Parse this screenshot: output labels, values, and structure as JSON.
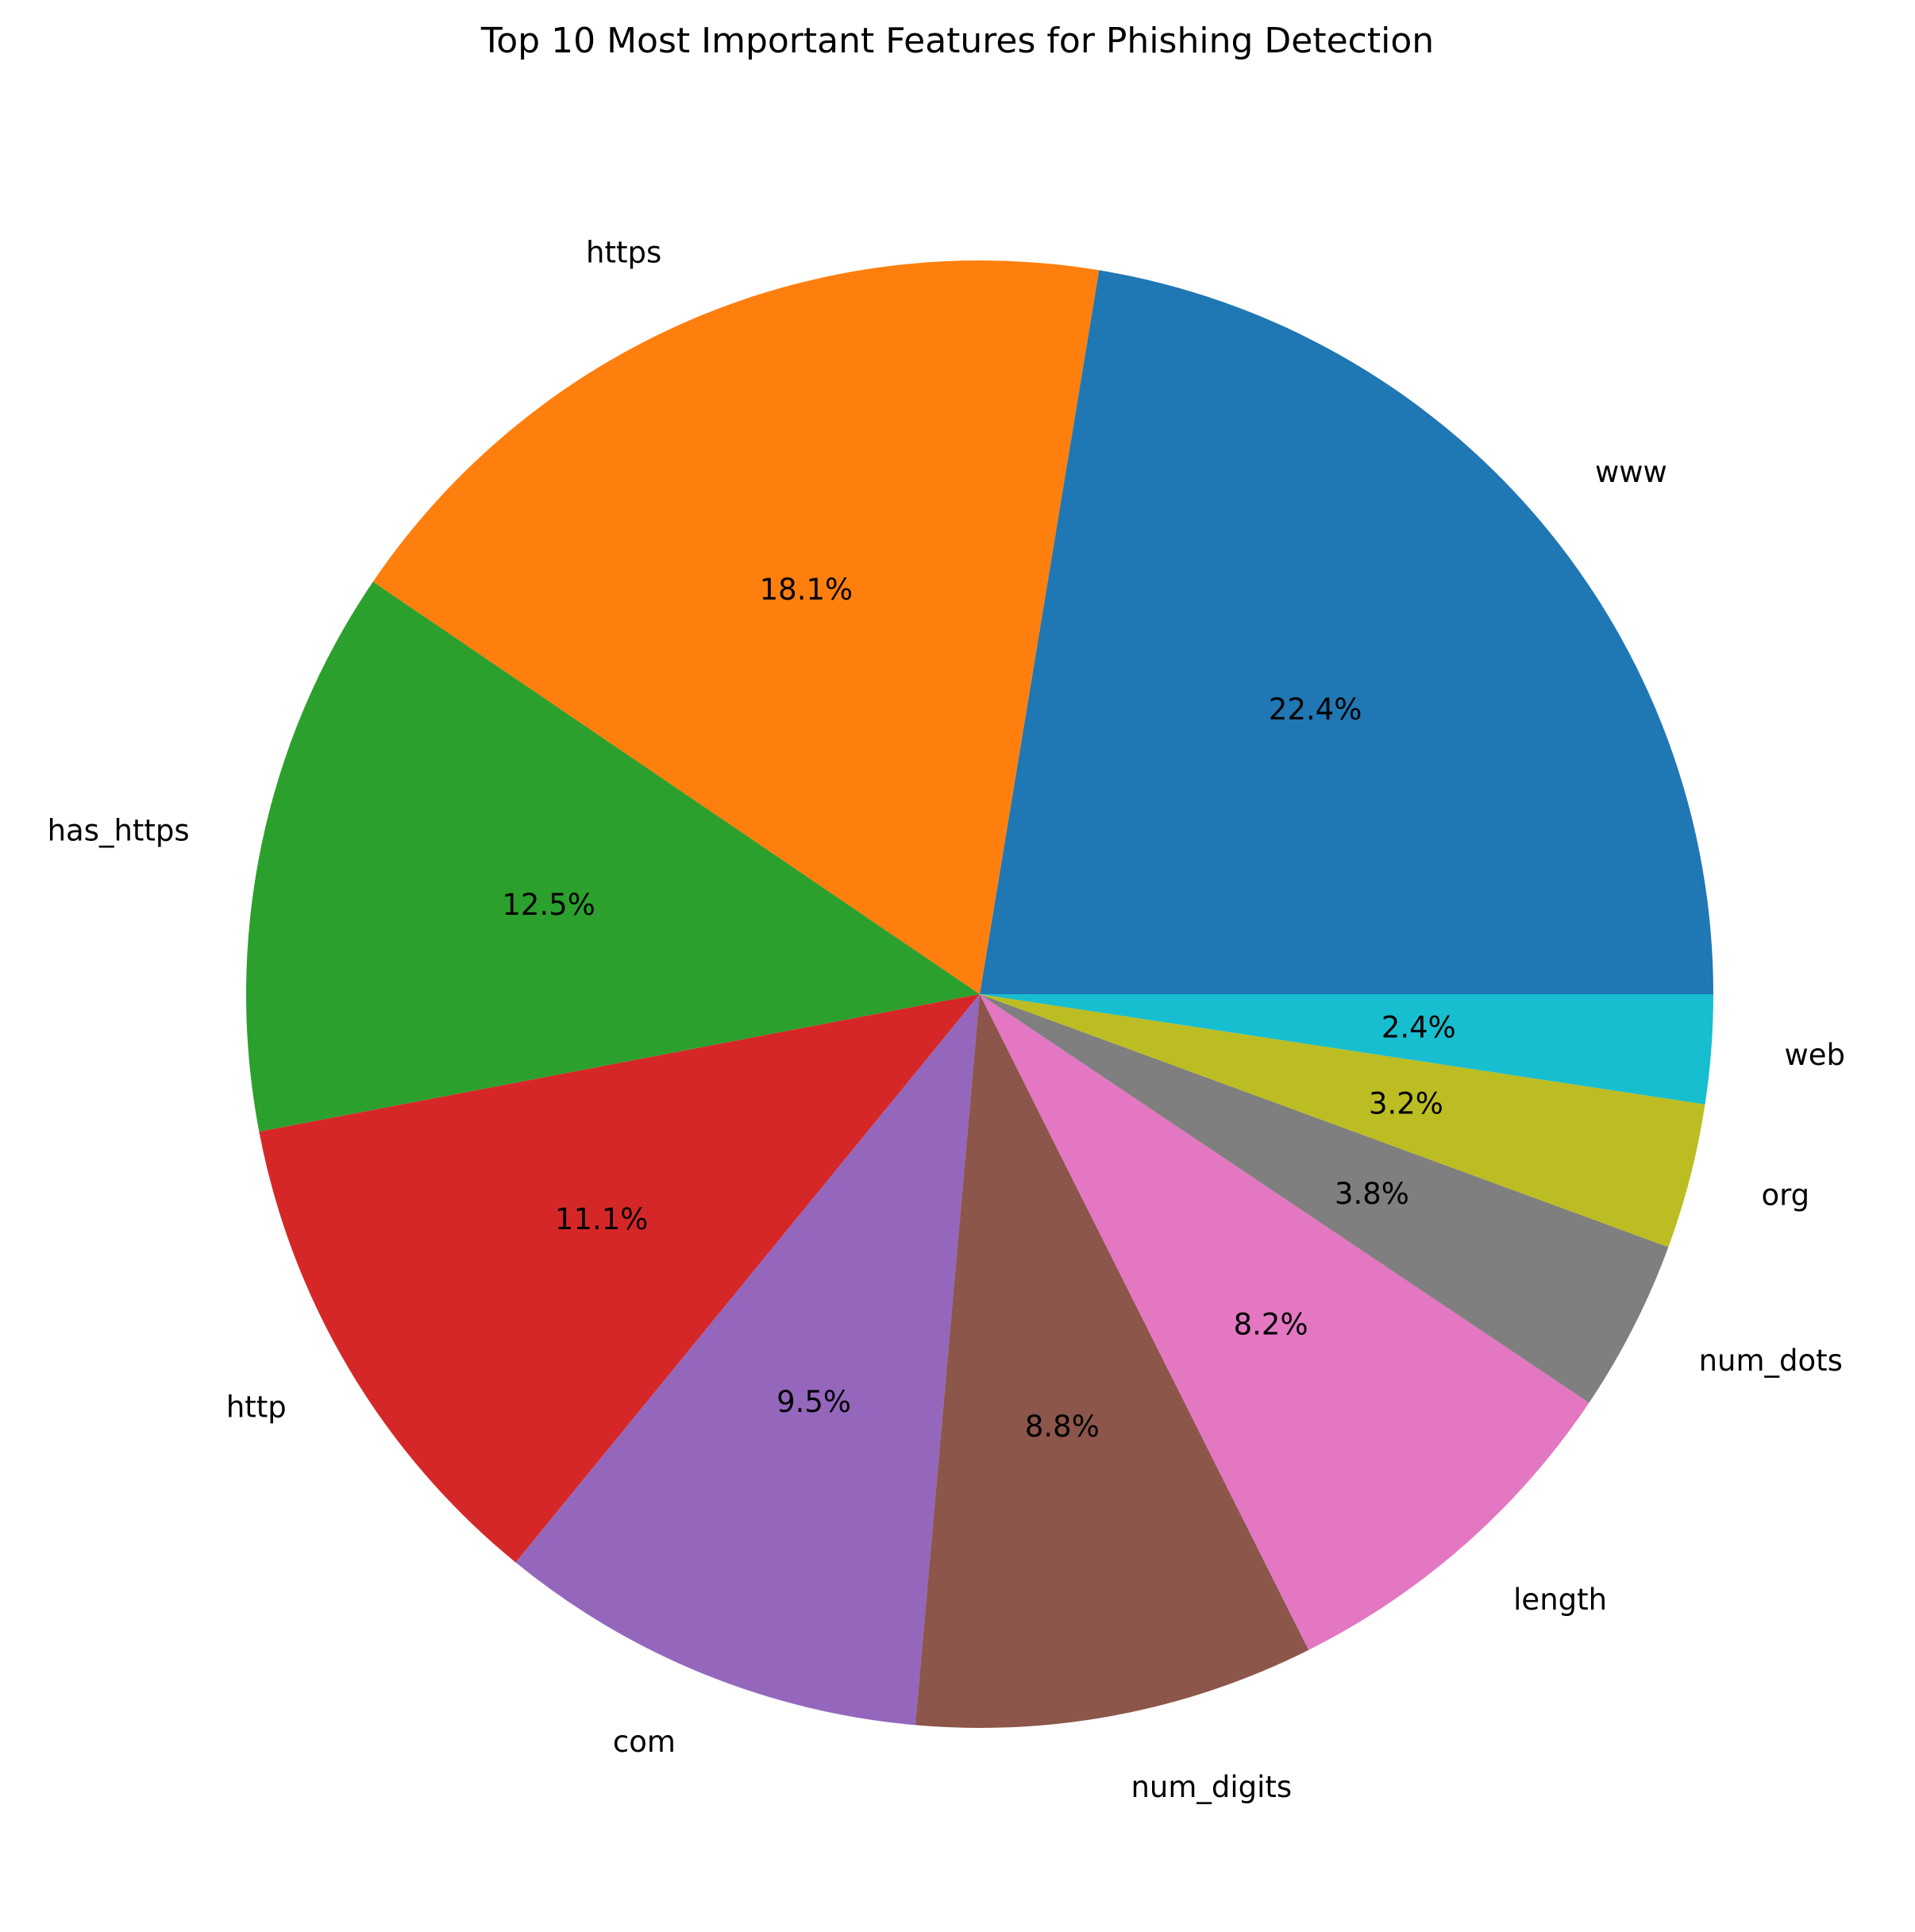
{
  "chart_data": {
    "type": "pie",
    "title": "Top 10 Most Important Features for Phishing Detection",
    "start_angle_deg": 0,
    "direction": "counterclockwise",
    "legend": "none",
    "slices": [
      {
        "label": "www",
        "value": 22.4,
        "pct_label": "22.4%",
        "color": "#1f77b4"
      },
      {
        "label": "https",
        "value": 18.1,
        "pct_label": "18.1%",
        "color": "#ff7f0e"
      },
      {
        "label": "has_https",
        "value": 12.5,
        "pct_label": "12.5%",
        "color": "#2ca02c"
      },
      {
        "label": "http",
        "value": 11.1,
        "pct_label": "11.1%",
        "color": "#d62728"
      },
      {
        "label": "com",
        "value": 9.5,
        "pct_label": "9.5%",
        "color": "#9467bd"
      },
      {
        "label": "num_digits",
        "value": 8.8,
        "pct_label": "8.8%",
        "color": "#8c564b"
      },
      {
        "label": "length",
        "value": 8.2,
        "pct_label": "8.2%",
        "color": "#e377c2"
      },
      {
        "label": "num_dots",
        "value": 3.8,
        "pct_label": "3.8%",
        "color": "#7f7f7f"
      },
      {
        "label": "org",
        "value": 3.2,
        "pct_label": "3.2%",
        "color": "#bcbd22"
      },
      {
        "label": "web",
        "value": 2.4,
        "pct_label": "2.4%",
        "color": "#17becf"
      }
    ]
  }
}
